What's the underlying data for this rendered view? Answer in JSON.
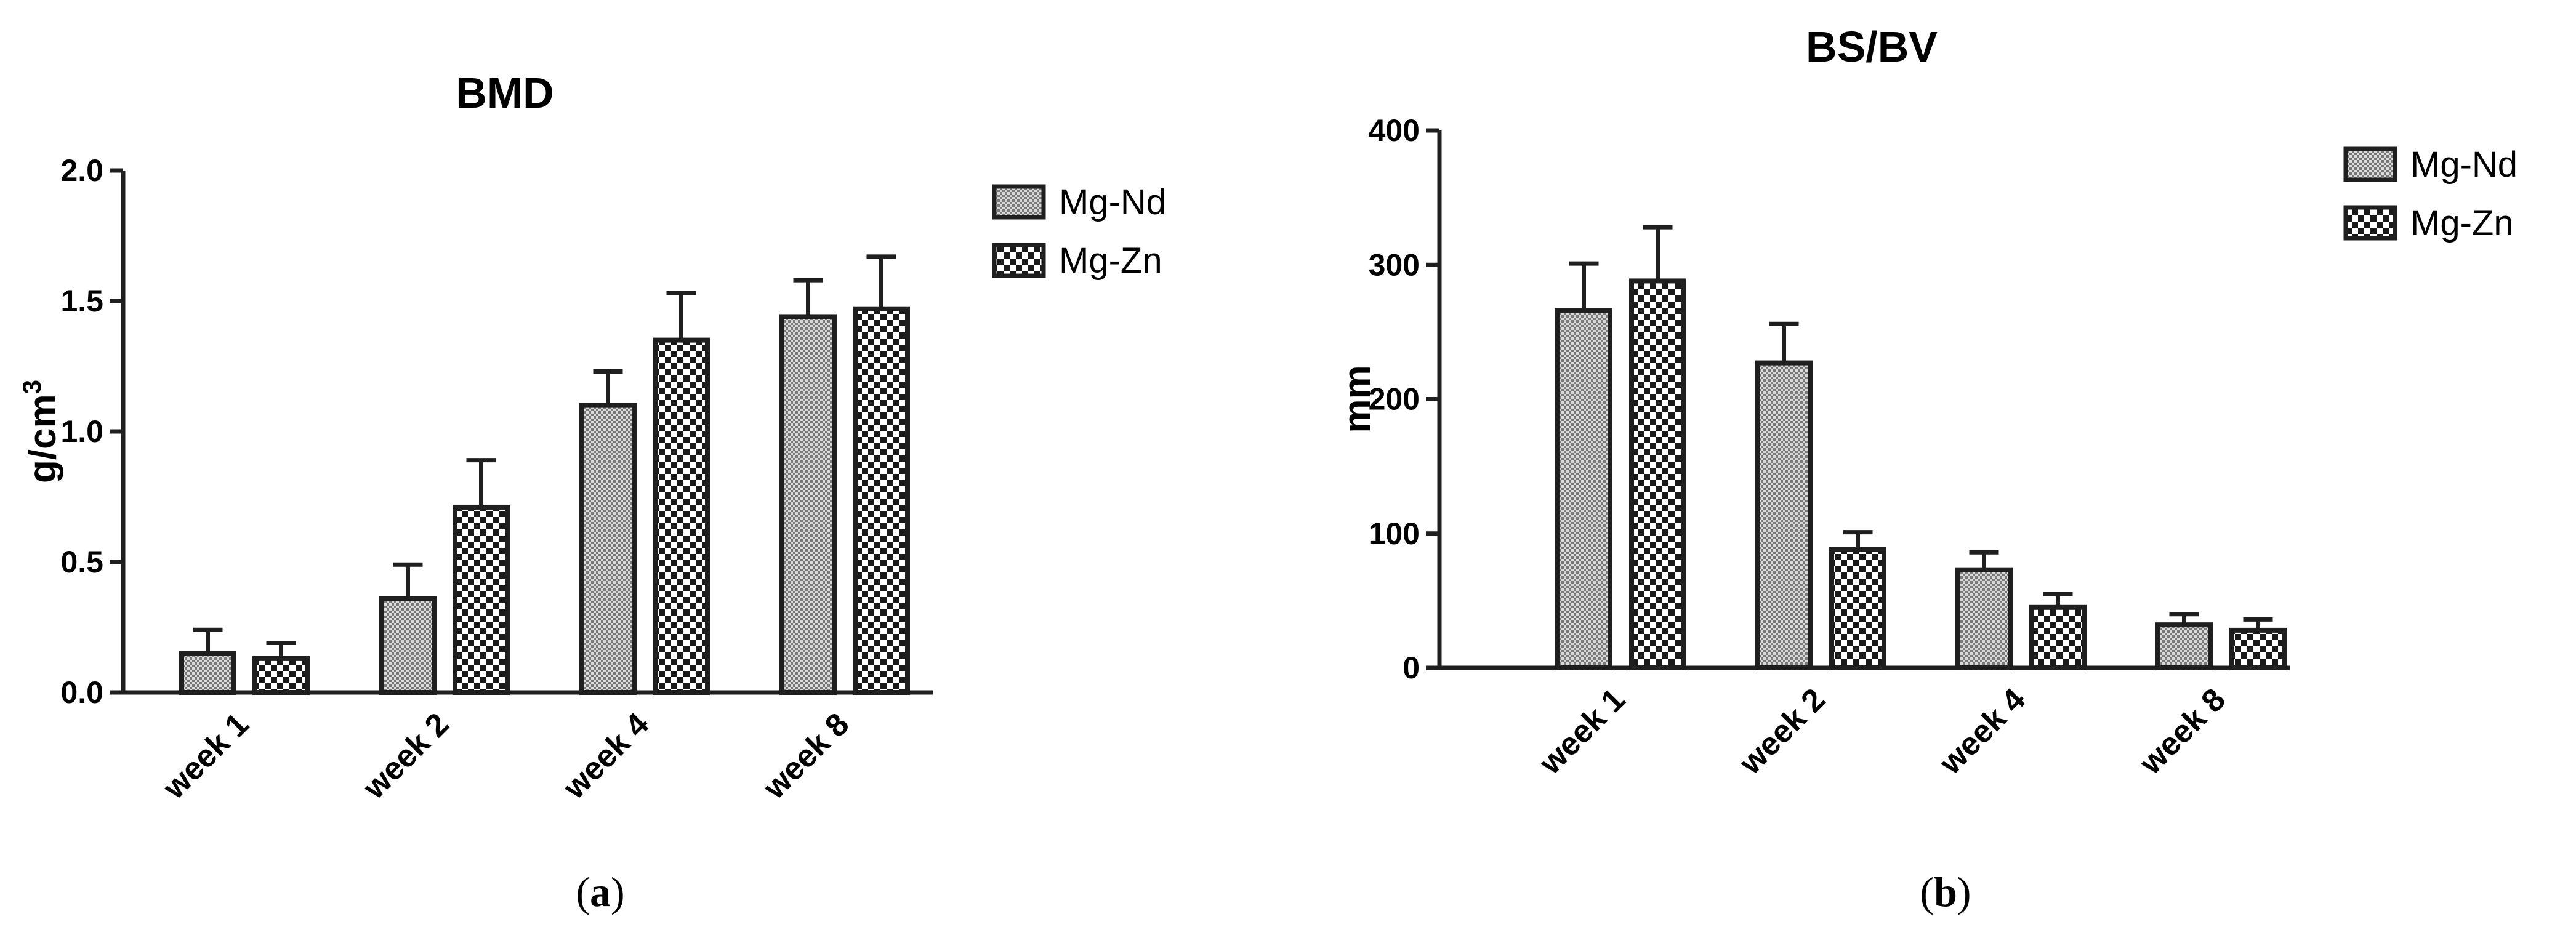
{
  "chart_data": [
    {
      "type": "bar",
      "title": "BMD",
      "ylabel": "g/cm",
      "ylabel_sup": "3",
      "xlabel": "",
      "ylim": [
        0,
        2.0
      ],
      "yticks": [
        "0.0",
        "0.5",
        "1.0",
        "1.5",
        "2.0"
      ],
      "categories": [
        "week 1",
        "week 2",
        "week 4",
        "week 8"
      ],
      "series": [
        {
          "name": "Mg-Nd",
          "values": [
            0.15,
            0.36,
            1.1,
            1.44
          ],
          "errors": [
            0.09,
            0.13,
            0.13,
            0.14
          ]
        },
        {
          "name": "Mg-Zn",
          "values": [
            0.13,
            0.71,
            1.35,
            1.47
          ],
          "errors": [
            0.06,
            0.18,
            0.18,
            0.2
          ]
        }
      ],
      "legend_position": "top-right",
      "panel_label": "a"
    },
    {
      "type": "bar",
      "title": "BS/BV",
      "ylabel": "mm",
      "ylabel_sup": "",
      "xlabel": "",
      "ylim": [
        0,
        400
      ],
      "yticks": [
        "0",
        "100",
        "200",
        "300",
        "400"
      ],
      "categories": [
        "week 1",
        "week 2",
        "week 4",
        "week 8"
      ],
      "series": [
        {
          "name": "Mg-Nd",
          "values": [
            266,
            227,
            73,
            32
          ],
          "errors": [
            35,
            29,
            13,
            8
          ]
        },
        {
          "name": "Mg-Zn",
          "values": [
            288,
            88,
            45,
            28
          ],
          "errors": [
            40,
            13,
            10,
            8
          ]
        }
      ],
      "legend_position": "top-right",
      "panel_label": "b"
    }
  ]
}
